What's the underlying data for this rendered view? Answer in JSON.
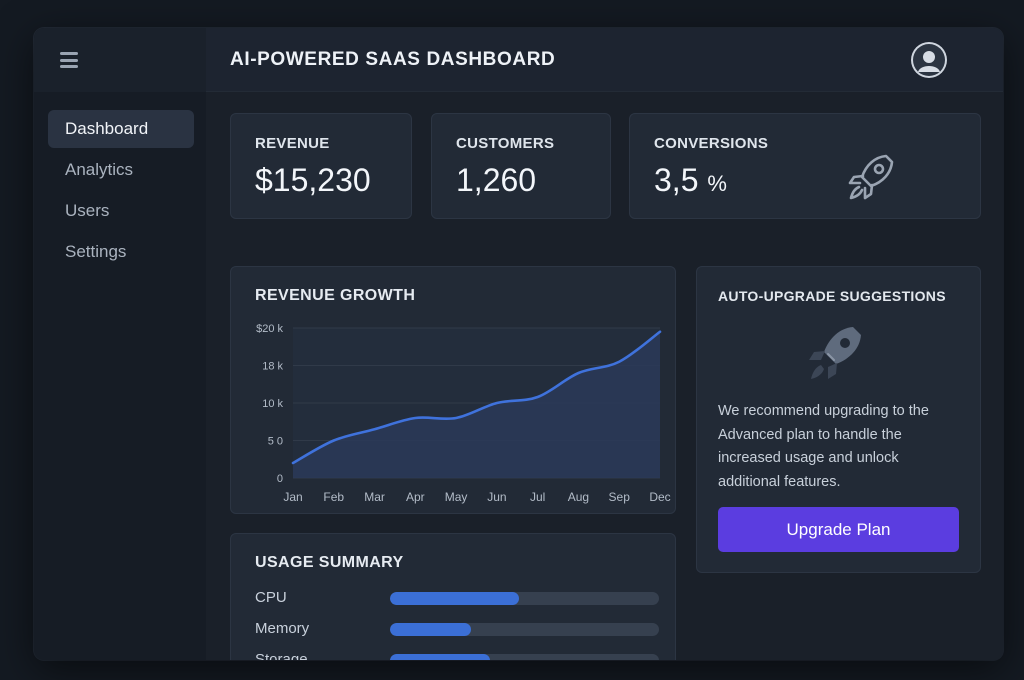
{
  "header": {
    "title": "AI-POWERED SAAS DASHBOARD",
    "menu_icon": "hamburger-menu-icon",
    "avatar_icon": "user-avatar-icon"
  },
  "sidebar": {
    "items": [
      {
        "label": "Dashboard",
        "active": true
      },
      {
        "label": "Analytics",
        "active": false
      },
      {
        "label": "Users",
        "active": false
      },
      {
        "label": "Settings",
        "active": false
      }
    ]
  },
  "kpis": {
    "revenue": {
      "label": "REVENUE",
      "value": "$15,230"
    },
    "customers": {
      "label": "CUSTOMERS",
      "value": "1,260"
    },
    "conversions": {
      "label": "CONVERSIONS",
      "value": "3,5",
      "unit": "%",
      "icon": "rocket-icon"
    }
  },
  "revenue_growth": {
    "title": "REVENUE GROWTH"
  },
  "chart_data": {
    "type": "area",
    "title": "REVENUE GROWTH",
    "categories": [
      "Jan",
      "Feb",
      "Mar",
      "Apr",
      "May",
      "Jun",
      "Jul",
      "Aug",
      "Sep",
      "Dec"
    ],
    "y_ticks": [
      "$20 k",
      "18 k",
      "10 k",
      "5 0",
      "0"
    ],
    "series": [
      {
        "values": [
          2,
          5,
          6.5,
          8,
          8,
          10,
          10.8,
          14,
          15.5,
          19.5
        ]
      }
    ],
    "ylim": [
      0,
      20
    ],
    "grid": true,
    "legend": "none",
    "line_color": "#3f72dc",
    "fill_color": "#2a3958"
  },
  "usage": {
    "title": "USAGE SUMMARY",
    "items": [
      {
        "label": "CPU",
        "value": 0.48
      },
      {
        "label": "Memory",
        "value": 0.3
      },
      {
        "label": "Storage",
        "value": 0.37
      }
    ]
  },
  "suggestions": {
    "title": "AUTO-UPGRADE SUGGESTIONS",
    "icon": "rocket-icon",
    "text": "We recommend upgrading to the Advanced plan to handle the increased usage and unlock additional features.",
    "button_label": "Upgrade Plan"
  },
  "colors": {
    "accent": "#5b3de0",
    "bar": "#3b6fd6",
    "line": "#3f72dc"
  }
}
